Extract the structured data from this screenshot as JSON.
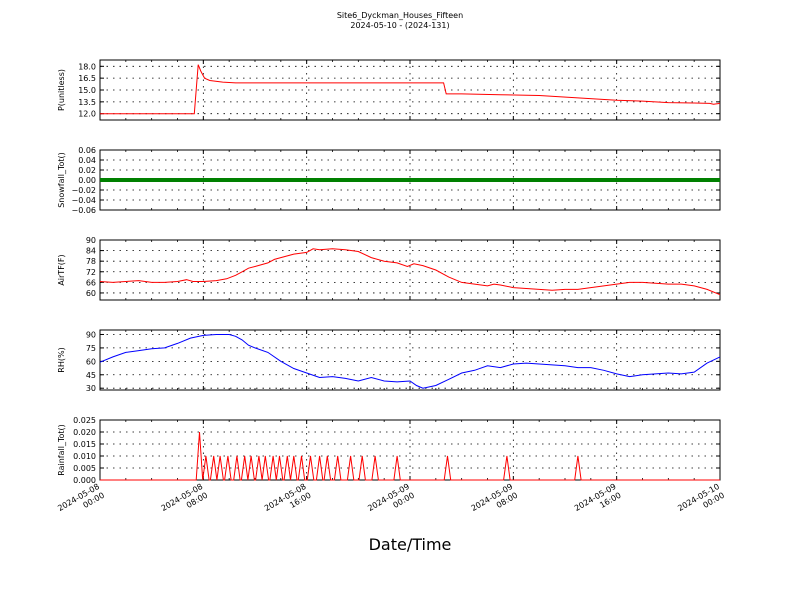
{
  "chart_data": {
    "type": "line",
    "title": "Site6_Dyckman_Houses_Fifteen",
    "subtitle": "2024-05-10 - (2024-131)",
    "xlabel": "Date/Time",
    "x_ticks": [
      {
        "l1": "2024-05-08",
        "l2": "00:00"
      },
      {
        "l1": "2024-05-08",
        "l2": "08:00"
      },
      {
        "l1": "2024-05-08",
        "l2": "16:00"
      },
      {
        "l1": "2024-05-09",
        "l2": "00:00"
      },
      {
        "l1": "2024-05-09",
        "l2": "08:00"
      },
      {
        "l1": "2024-05-09",
        "l2": "16:00"
      },
      {
        "l1": "2024-05-10",
        "l2": "00:00"
      }
    ],
    "x_range_hours": [
      0,
      48
    ],
    "grid": true,
    "panels": [
      {
        "ylabel": "P(unitless)",
        "ylim": [
          11.2,
          18.8
        ],
        "yticks": [
          "12.0",
          "13.5",
          "15.0",
          "16.5",
          "18.0"
        ],
        "yticks_values": [
          12.0,
          13.5,
          15.0,
          16.5,
          18.0
        ],
        "color": "#ff0000",
        "points": [
          [
            0,
            12.0
          ],
          [
            7.3,
            12.0
          ],
          [
            7.6,
            18.2
          ],
          [
            7.8,
            17.4
          ],
          [
            8.1,
            16.5
          ],
          [
            8.5,
            16.2
          ],
          [
            9.5,
            16.0
          ],
          [
            10.5,
            15.9
          ],
          [
            14,
            15.9
          ],
          [
            18,
            15.9
          ],
          [
            22,
            15.9
          ],
          [
            26.6,
            15.9
          ],
          [
            26.8,
            14.5
          ],
          [
            28,
            14.5
          ],
          [
            31,
            14.4
          ],
          [
            34,
            14.3
          ],
          [
            37,
            14.0
          ],
          [
            40,
            13.7
          ],
          [
            42,
            13.6
          ],
          [
            44,
            13.4
          ],
          [
            46,
            13.35
          ],
          [
            47.2,
            13.3
          ],
          [
            47.5,
            13.2
          ],
          [
            48,
            13.3
          ]
        ]
      },
      {
        "ylabel": "Snowfall_Tot()",
        "ylim": [
          -0.06,
          0.06
        ],
        "yticks": [
          "−0.06",
          "−0.04",
          "−0.02",
          "0.00",
          "0.02",
          "0.04",
          "0.06"
        ],
        "yticks_values": [
          -0.06,
          -0.04,
          -0.02,
          0.0,
          0.02,
          0.04,
          0.06
        ],
        "color": "#008000",
        "thick": true,
        "points": [
          [
            0,
            0
          ],
          [
            48,
            0
          ]
        ]
      },
      {
        "ylabel": "AirTF(F)",
        "ylim": [
          56,
          90
        ],
        "yticks": [
          "60",
          "66",
          "72",
          "78",
          "84",
          "90"
        ],
        "yticks_values": [
          60,
          66,
          72,
          78,
          84,
          90
        ],
        "color": "#ff0000",
        "points": [
          [
            0,
            66.5
          ],
          [
            1,
            66
          ],
          [
            2,
            66.5
          ],
          [
            3,
            67
          ],
          [
            4,
            66
          ],
          [
            5,
            66
          ],
          [
            6,
            66.5
          ],
          [
            6.7,
            67.5
          ],
          [
            7.2,
            66.5
          ],
          [
            8,
            66.5
          ],
          [
            9,
            67
          ],
          [
            9.8,
            68
          ],
          [
            10.5,
            70
          ],
          [
            11,
            72
          ],
          [
            11.5,
            74
          ],
          [
            12,
            75
          ],
          [
            13,
            77
          ],
          [
            13.5,
            79
          ],
          [
            14,
            80
          ],
          [
            15,
            82
          ],
          [
            16,
            83
          ],
          [
            16.5,
            85
          ],
          [
            17,
            84.5
          ],
          [
            18,
            85
          ],
          [
            19,
            84.5
          ],
          [
            20,
            83.5
          ],
          [
            21,
            80
          ],
          [
            22,
            78
          ],
          [
            23,
            77
          ],
          [
            23.8,
            75
          ],
          [
            24.3,
            76.5
          ],
          [
            25,
            75.5
          ],
          [
            26,
            73
          ],
          [
            27,
            69
          ],
          [
            28,
            66
          ],
          [
            29,
            65
          ],
          [
            30,
            64
          ],
          [
            30.5,
            65
          ],
          [
            31,
            64.5
          ],
          [
            32,
            63
          ],
          [
            33,
            62.5
          ],
          [
            34,
            62
          ],
          [
            35,
            61.5
          ],
          [
            36,
            62
          ],
          [
            37,
            62
          ],
          [
            38,
            63
          ],
          [
            39,
            64
          ],
          [
            40,
            65
          ],
          [
            41,
            66
          ],
          [
            42,
            66
          ],
          [
            43,
            65.5
          ],
          [
            44,
            65
          ],
          [
            45,
            65
          ],
          [
            46,
            64
          ],
          [
            47,
            62
          ],
          [
            48,
            59
          ]
        ]
      },
      {
        "ylabel": "RH(%)",
        "ylim": [
          28,
          95
        ],
        "yticks": [
          "30",
          "45",
          "60",
          "75",
          "90"
        ],
        "yticks_values": [
          30,
          45,
          60,
          75,
          90
        ],
        "color": "#0000ff",
        "points": [
          [
            0,
            59
          ],
          [
            1,
            65
          ],
          [
            2,
            70
          ],
          [
            3,
            72
          ],
          [
            4,
            74
          ],
          [
            5,
            75
          ],
          [
            6,
            80
          ],
          [
            7,
            86
          ],
          [
            8,
            89
          ],
          [
            9,
            90
          ],
          [
            10,
            90
          ],
          [
            10.5,
            88
          ],
          [
            11,
            84
          ],
          [
            11.5,
            78
          ],
          [
            12,
            75
          ],
          [
            13,
            70
          ],
          [
            14,
            60
          ],
          [
            15,
            52
          ],
          [
            16,
            47
          ],
          [
            17,
            42
          ],
          [
            18,
            43
          ],
          [
            19,
            41
          ],
          [
            20,
            38
          ],
          [
            21,
            42
          ],
          [
            22,
            38
          ],
          [
            23,
            37
          ],
          [
            24,
            38
          ],
          [
            24.5,
            33
          ],
          [
            25,
            30
          ],
          [
            26,
            33
          ],
          [
            27,
            40
          ],
          [
            28,
            47
          ],
          [
            29,
            50
          ],
          [
            30,
            55
          ],
          [
            31,
            53
          ],
          [
            32,
            57
          ],
          [
            33,
            58
          ],
          [
            34,
            57
          ],
          [
            35,
            56
          ],
          [
            36,
            55
          ],
          [
            37,
            53
          ],
          [
            38,
            53
          ],
          [
            39,
            50
          ],
          [
            40,
            46
          ],
          [
            41,
            43
          ],
          [
            42,
            45
          ],
          [
            43,
            46
          ],
          [
            44,
            47
          ],
          [
            45,
            46
          ],
          [
            46,
            48
          ],
          [
            47,
            58
          ],
          [
            48,
            65
          ]
        ]
      },
      {
        "ylabel": "Rainfall_Tot()",
        "ylim": [
          0,
          0.025
        ],
        "yticks": [
          "0.000",
          "0.005",
          "0.010",
          "0.015",
          "0.020",
          "0.025"
        ],
        "yticks_values": [
          0,
          0.005,
          0.01,
          0.015,
          0.02,
          0.025
        ],
        "color": "#ff0000",
        "spikes": [
          [
            7.7,
            0.02
          ],
          [
            8.2,
            0.01
          ],
          [
            8.8,
            0.01
          ],
          [
            9.3,
            0.01
          ],
          [
            9.9,
            0.01
          ],
          [
            10.6,
            0.01
          ],
          [
            11.2,
            0.01
          ],
          [
            11.7,
            0.01
          ],
          [
            12.3,
            0.01
          ],
          [
            12.8,
            0.01
          ],
          [
            13.4,
            0.01
          ],
          [
            13.9,
            0.01
          ],
          [
            14.5,
            0.01
          ],
          [
            15.0,
            0.01
          ],
          [
            15.6,
            0.01
          ],
          [
            16.3,
            0.01
          ],
          [
            17.0,
            0.01
          ],
          [
            17.6,
            0.01
          ],
          [
            18.4,
            0.01
          ],
          [
            19.4,
            0.01
          ],
          [
            20.3,
            0.01
          ],
          [
            21.3,
            0.01
          ],
          [
            23.0,
            0.01
          ],
          [
            26.9,
            0.01
          ],
          [
            31.5,
            0.01
          ],
          [
            37.0,
            0.01
          ]
        ]
      }
    ]
  }
}
